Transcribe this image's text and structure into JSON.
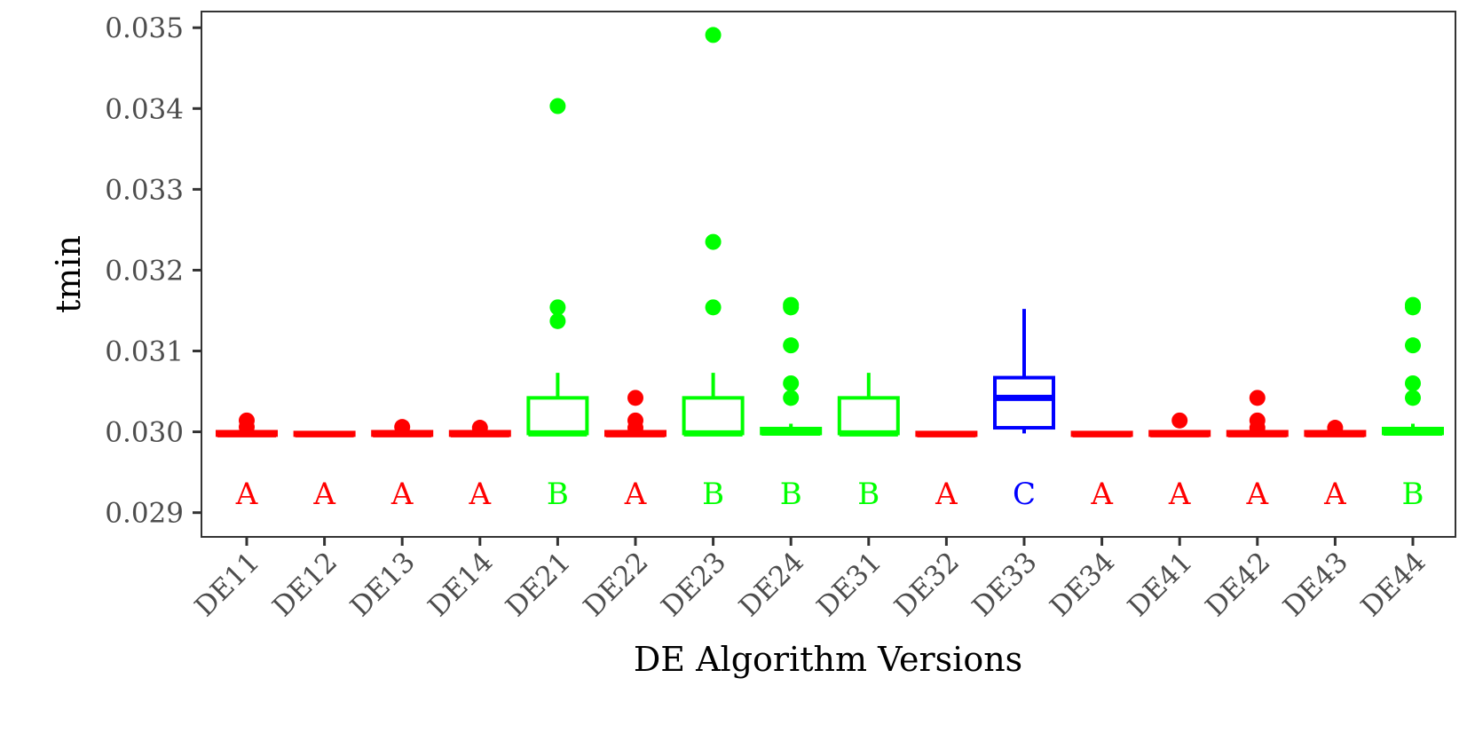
{
  "chart_data": {
    "type": "box",
    "xlabel": "DE Algorithm Versions",
    "ylabel": "tmin",
    "ylim": [
      0.0287,
      0.0352
    ],
    "yticks": [
      "0.029",
      "0.030",
      "0.031",
      "0.032",
      "0.033",
      "0.034",
      "0.035"
    ],
    "grid": false,
    "legend": "none",
    "group_colors": {
      "A": "#ff0000",
      "B": "#00ff00",
      "C": "#0000ff"
    },
    "categories": [
      "DE11",
      "DE12",
      "DE13",
      "DE14",
      "DE21",
      "DE22",
      "DE23",
      "DE24",
      "DE31",
      "DE32",
      "DE33",
      "DE34",
      "DE41",
      "DE42",
      "DE43",
      "DE44"
    ],
    "boxes": [
      {
        "name": "DE11",
        "group": "A",
        "q1": 0.02997,
        "median": 0.02997,
        "q3": 0.02999,
        "whisker_low": 0.02997,
        "whisker_high": 0.02999,
        "outliers": [
          0.03006,
          0.03014
        ]
      },
      {
        "name": "DE12",
        "group": "A",
        "q1": 0.02997,
        "median": 0.02997,
        "q3": 0.02998,
        "whisker_low": 0.02997,
        "whisker_high": 0.02998,
        "outliers": []
      },
      {
        "name": "DE13",
        "group": "A",
        "q1": 0.02997,
        "median": 0.02997,
        "q3": 0.02999,
        "whisker_low": 0.02997,
        "whisker_high": 0.02999,
        "outliers": [
          0.03006
        ]
      },
      {
        "name": "DE14",
        "group": "A",
        "q1": 0.02997,
        "median": 0.02997,
        "q3": 0.02999,
        "whisker_low": 0.02997,
        "whisker_high": 0.02999,
        "outliers": [
          0.03005
        ]
      },
      {
        "name": "DE21",
        "group": "B",
        "q1": 0.02998,
        "median": 0.02998,
        "q3": 0.03042,
        "whisker_low": 0.02998,
        "whisker_high": 0.03073,
        "outliers": [
          0.03137,
          0.03154,
          0.03403
        ]
      },
      {
        "name": "DE22",
        "group": "A",
        "q1": 0.02997,
        "median": 0.02997,
        "q3": 0.02999,
        "whisker_low": 0.02997,
        "whisker_high": 0.02999,
        "outliers": [
          0.03005,
          0.03014,
          0.03042
        ]
      },
      {
        "name": "DE23",
        "group": "B",
        "q1": 0.02998,
        "median": 0.02998,
        "q3": 0.03042,
        "whisker_low": 0.02998,
        "whisker_high": 0.03073,
        "outliers": [
          0.03154,
          0.03235,
          0.03491
        ]
      },
      {
        "name": "DE24",
        "group": "B",
        "q1": 0.02998,
        "median": 0.02999,
        "q3": 0.03004,
        "whisker_low": 0.02998,
        "whisker_high": 0.0301,
        "outliers": [
          0.03042,
          0.0306,
          0.03107,
          0.03154,
          0.03157
        ]
      },
      {
        "name": "DE31",
        "group": "B",
        "q1": 0.02998,
        "median": 0.02998,
        "q3": 0.03042,
        "whisker_low": 0.02998,
        "whisker_high": 0.03073,
        "outliers": []
      },
      {
        "name": "DE32",
        "group": "A",
        "q1": 0.02997,
        "median": 0.02997,
        "q3": 0.02998,
        "whisker_low": 0.02997,
        "whisker_high": 0.02998,
        "outliers": []
      },
      {
        "name": "DE33",
        "group": "C",
        "q1": 0.03005,
        "median": 0.03042,
        "q3": 0.03067,
        "whisker_low": 0.02998,
        "whisker_high": 0.03152,
        "outliers": []
      },
      {
        "name": "DE34",
        "group": "A",
        "q1": 0.02997,
        "median": 0.02997,
        "q3": 0.02998,
        "whisker_low": 0.02997,
        "whisker_high": 0.02998,
        "outliers": []
      },
      {
        "name": "DE41",
        "group": "A",
        "q1": 0.02997,
        "median": 0.02997,
        "q3": 0.02999,
        "whisker_low": 0.02997,
        "whisker_high": 0.02999,
        "outliers": [
          0.03014
        ]
      },
      {
        "name": "DE42",
        "group": "A",
        "q1": 0.02997,
        "median": 0.02997,
        "q3": 0.02999,
        "whisker_low": 0.02997,
        "whisker_high": 0.02999,
        "outliers": [
          0.03005,
          0.03014,
          0.03042
        ]
      },
      {
        "name": "DE43",
        "group": "A",
        "q1": 0.02997,
        "median": 0.02997,
        "q3": 0.02999,
        "whisker_low": 0.02997,
        "whisker_high": 0.02999,
        "outliers": [
          0.03005
        ]
      },
      {
        "name": "DE44",
        "group": "B",
        "q1": 0.02998,
        "median": 0.02999,
        "q3": 0.03004,
        "whisker_low": 0.02998,
        "whisker_high": 0.0301,
        "outliers": [
          0.03042,
          0.0306,
          0.03107,
          0.03154,
          0.03157
        ]
      }
    ]
  }
}
